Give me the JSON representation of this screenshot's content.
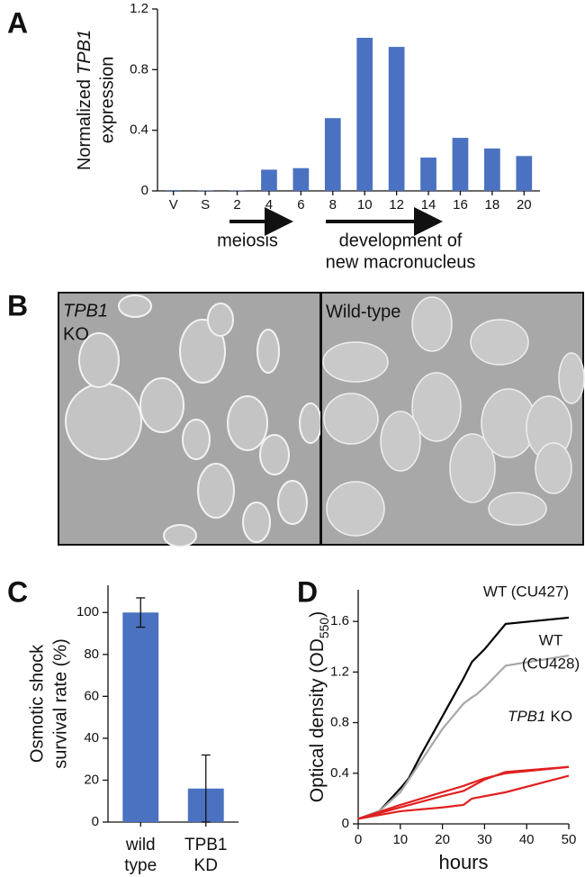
{
  "panel_labels": [
    "A",
    "B",
    "C",
    "D"
  ],
  "images": [
    {
      "labels": [
        "TPB1",
        "KO"
      ]
    },
    {
      "labels": [
        "Wild-type"
      ]
    }
  ],
  "chart_data": [
    {
      "type": "bar",
      "y_label": {
        "line1": "Normalized",
        "italic": "TPB1",
        "line2": "expression"
      },
      "categories": [
        "V",
        "S",
        "2",
        "4",
        "6",
        "8",
        "10",
        "12",
        "14",
        "16",
        "18",
        "20"
      ],
      "values": [
        0.005,
        0.003,
        0.003,
        0.14,
        0.15,
        0.48,
        1.01,
        0.95,
        0.22,
        0.35,
        0.28,
        0.23
      ],
      "color": "#4a72c0",
      "ylim": [
        0,
        1.2
      ],
      "yticks": [
        0,
        0.4,
        0.8,
        1.2
      ],
      "annotations": [
        {
          "lines": [
            "meiosis"
          ]
        },
        {
          "lines": [
            "development of",
            "new macronucleus"
          ]
        }
      ]
    },
    {
      "type": "bar",
      "y_label": {
        "line1": "Osmotic shock",
        "line2": "survival rate (%)"
      },
      "categories": [
        "wild type",
        "TPB1 KD"
      ],
      "values": [
        100,
        16
      ],
      "errors": [
        7,
        16
      ],
      "color": "#4a72c0",
      "ylim": [
        0,
        113
      ],
      "yticks": [
        0,
        20,
        40,
        60,
        80,
        100
      ]
    },
    {
      "type": "line",
      "x_label": "hours",
      "y_label": {
        "text": "Optical density (OD",
        "sub": "550",
        "end": ")"
      },
      "xlim": [
        0,
        50
      ],
      "xticks": [
        0,
        10,
        20,
        30,
        40,
        50
      ],
      "ylim": [
        0,
        1.85
      ],
      "yticks": [
        0,
        0.4,
        0.8,
        1.2,
        1.6
      ],
      "series": [
        {
          "name": "WT (CU427)",
          "color": "#000000",
          "x": [
            0,
            5,
            10,
            12,
            15,
            20,
            25,
            27,
            30,
            35,
            50
          ],
          "values": [
            0.04,
            0.1,
            0.28,
            0.36,
            0.55,
            0.85,
            1.15,
            1.28,
            1.38,
            1.58,
            1.63
          ]
        },
        {
          "color": "#a8a8a8",
          "x": [
            0,
            5,
            10,
            15,
            20,
            25,
            27,
            28,
            30,
            35,
            50
          ],
          "values": [
            0.04,
            0.1,
            0.25,
            0.5,
            0.75,
            0.95,
            1.0,
            1.02,
            1.08,
            1.25,
            1.33
          ]
        },
        {
          "color": "#e02020",
          "x": [
            0,
            10,
            20,
            25,
            30,
            35,
            50
          ],
          "values": [
            0.04,
            0.15,
            0.25,
            0.3,
            0.36,
            0.4,
            0.45
          ]
        },
        {
          "color": "#e02020",
          "x": [
            0,
            10,
            20,
            25,
            30,
            35,
            50
          ],
          "values": [
            0.04,
            0.13,
            0.22,
            0.26,
            0.35,
            0.41,
            0.45
          ]
        },
        {
          "color": "#e02020",
          "x": [
            0,
            10,
            20,
            25,
            27,
            35,
            50
          ],
          "values": [
            0.04,
            0.1,
            0.13,
            0.15,
            0.2,
            0.25,
            0.38
          ]
        }
      ],
      "annotations": [
        {
          "lines": [
            "WT",
            "(CU428)"
          ],
          "color": "#a8a8a8"
        },
        {
          "italic": "TPB1",
          "text": "KO",
          "color": "#e02020"
        }
      ]
    }
  ]
}
